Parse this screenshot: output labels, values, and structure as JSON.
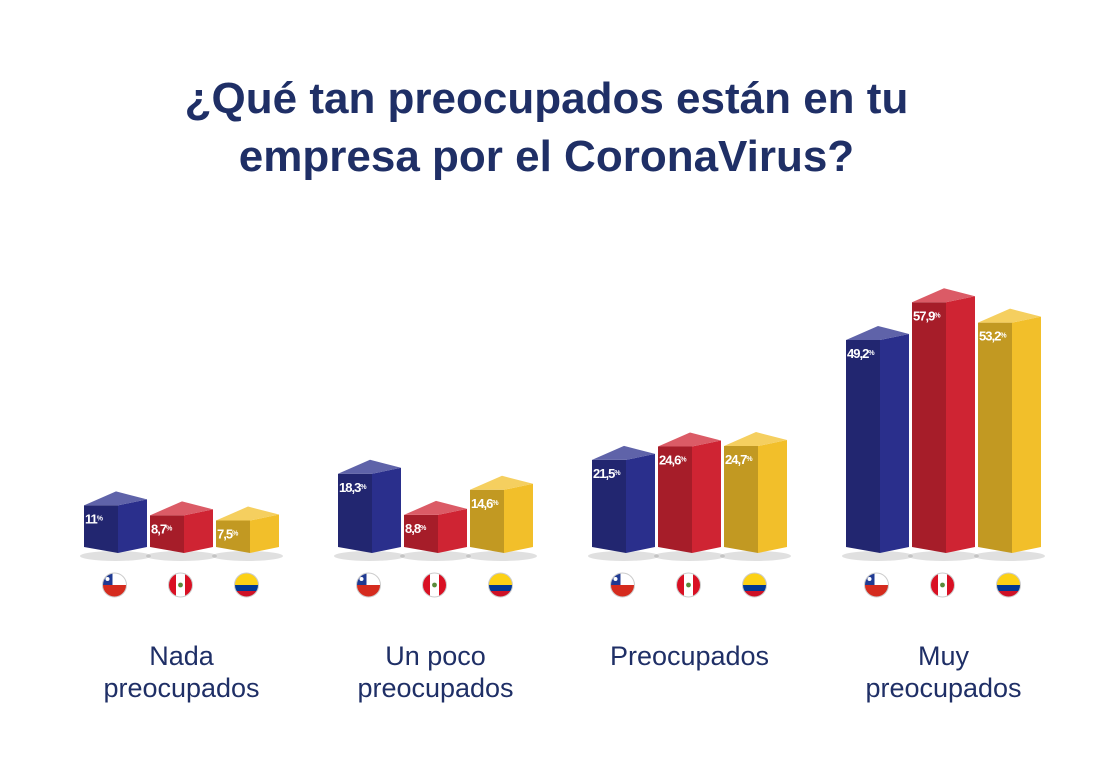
{
  "title_lines": [
    "¿Qué tan preocupados están en tu",
    "empresa por el CoronaVirus?"
  ],
  "colors": {
    "title": "#1f2f66",
    "chile": "#2a2f8c",
    "peru": "#cf2433",
    "colombia": "#f2bf2a"
  },
  "chart_data": {
    "type": "bar",
    "title": "¿Qué tan preocupados están en tu empresa por el CoronaVirus?",
    "xlabel": "",
    "ylabel": "",
    "ylim": [
      0,
      60
    ],
    "grid": false,
    "legend": "flag icons below each bar",
    "categories": [
      [
        "Nada",
        "preocupados"
      ],
      [
        "Un poco",
        "preocupados"
      ],
      [
        "Preocupados"
      ],
      [
        "Muy",
        "preocupados"
      ]
    ],
    "series": [
      {
        "flag": "chile-flag-icon",
        "color": "#2a2f8c",
        "values": [
          11,
          18.3,
          21.5,
          49.2
        ],
        "labels": [
          "11",
          "18,3",
          "21,5",
          "49,2"
        ]
      },
      {
        "flag": "peru-flag-icon",
        "color": "#cf2433",
        "values": [
          8.7,
          8.8,
          24.6,
          57.9
        ],
        "labels": [
          "8,7",
          "8,8",
          "24,6",
          "57,9"
        ]
      },
      {
        "flag": "colombia-flag-icon",
        "color": "#f2bf2a",
        "values": [
          7.5,
          14.6,
          24.7,
          53.2
        ],
        "labels": [
          "7,5",
          "14,6",
          "24,7",
          "53,2"
        ]
      }
    ],
    "value_suffix": "%"
  }
}
